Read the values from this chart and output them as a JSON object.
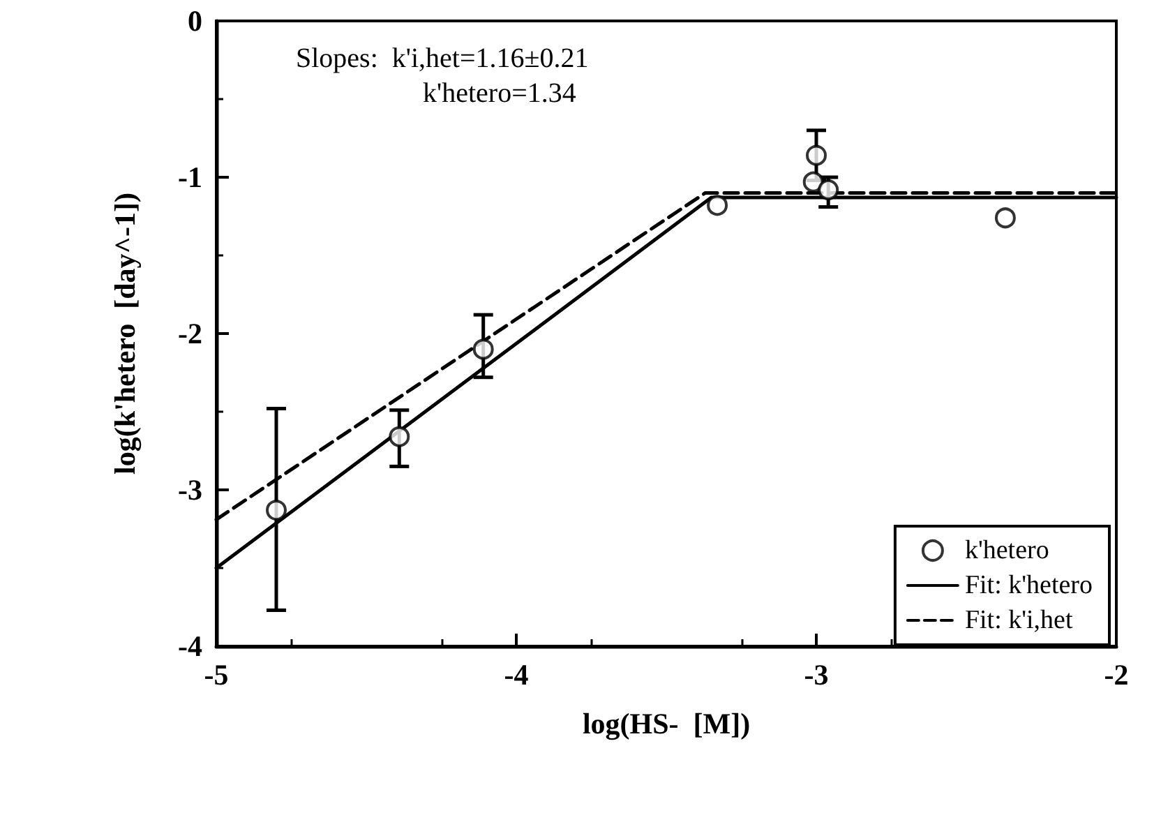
{
  "chart_data": {
    "type": "scatter",
    "xlabel": "log(HS-  [M])",
    "ylabel": "log(k'hetero  [day^-1])",
    "annotations": [
      "Slopes:  k'i,het=1.16±0.21",
      "k'hetero=1.34"
    ],
    "xlim": [
      -5,
      -2
    ],
    "xticks": [
      -5,
      -4,
      -3,
      -2
    ],
    "ylim": [
      -4,
      0
    ],
    "yticks": [
      -4,
      -3,
      -2,
      -1,
      0
    ],
    "grid": false,
    "legend": "bottom right",
    "series": [
      {
        "name": "k'hetero",
        "marker": "circle",
        "color": "#000000",
        "x": [
          -4.8,
          -4.39,
          -4.11,
          -3.33,
          -3.0,
          -3.01,
          -2.96,
          -2.37
        ],
        "values": [
          -3.13,
          -2.66,
          -2.1,
          -1.18,
          -0.86,
          -1.03,
          -1.08,
          -1.26
        ],
        "errors": [
          [
            -3.77,
            -2.48
          ],
          [
            -2.85,
            -2.49
          ],
          [
            -2.28,
            -1.88
          ],
          null,
          [
            -1.02,
            -0.7
          ],
          null,
          [
            -1.19,
            -1.0
          ],
          null
        ]
      },
      {
        "name": "Fit: k'hetero",
        "type": "line",
        "marker": "none",
        "color": "#000000",
        "line_style": "solid",
        "x": [
          -5,
          -3.35,
          -2
        ],
        "values": [
          -3.5,
          -1.13,
          -1.13
        ]
      },
      {
        "name": "Fit: k'i,het",
        "type": "line",
        "marker": "none",
        "color": "#000000",
        "line_style": "dashed",
        "x": [
          -5,
          -3.37,
          -2
        ],
        "values": [
          -3.19,
          -1.1,
          -1.1
        ]
      }
    ]
  }
}
